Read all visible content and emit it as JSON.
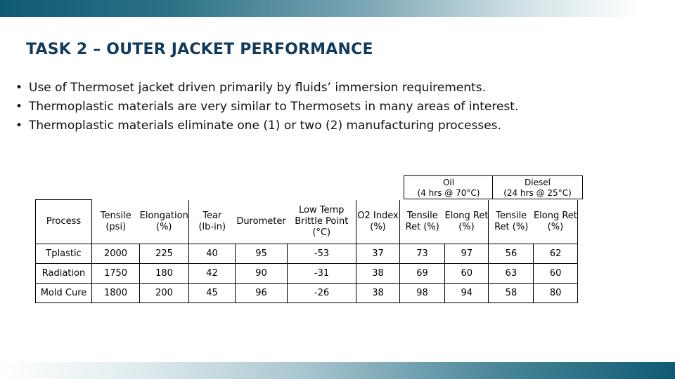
{
  "slide": {
    "title": "TASK 2 – OUTER JACKET PERFORMANCE",
    "bullets": [
      "Use of Thermoset jacket driven primarily by fluids’ immersion requirements.",
      "Thermoplastic materials are very similar to Thermosets in many areas of interest.",
      "Thermoplastic materials eliminate one (1) or two (2) manufacturing processes."
    ],
    "bullet_symbol": "•"
  },
  "table": {
    "groups": {
      "oil": [
        "Oil",
        "(4 hrs @ 70°C)"
      ],
      "diesel": [
        "Diesel",
        "(24 hrs @ 25°C)"
      ]
    },
    "headers": [
      [
        "Process"
      ],
      [
        "Tensile",
        "(psi)"
      ],
      [
        "Elongation",
        "(%)"
      ],
      [
        "Tear",
        "(lb-in)"
      ],
      [
        "Durometer"
      ],
      [
        "Low Temp",
        "Brittle Point",
        "(°C)"
      ],
      [
        "O2 Index",
        "(%)"
      ],
      [
        "Tensile",
        "Ret (%)"
      ],
      [
        "Elong Ret",
        "(%)"
      ],
      [
        "Tensile",
        "Ret (%)"
      ],
      [
        "Elong Ret",
        "(%)"
      ]
    ],
    "rows": [
      [
        "Tplastic",
        "2000",
        "225",
        "40",
        "95",
        "-53",
        "37",
        "73",
        "97",
        "56",
        "62"
      ],
      [
        "Radiation",
        "1750",
        "180",
        "42",
        "90",
        "-31",
        "38",
        "69",
        "60",
        "63",
        "60"
      ],
      [
        "Mold Cure",
        "1800",
        "200",
        "45",
        "96",
        "-26",
        "38",
        "98",
        "94",
        "58",
        "80"
      ]
    ]
  },
  "colors": {
    "title": "#113a5c",
    "band_dark": "#0e5a73"
  }
}
